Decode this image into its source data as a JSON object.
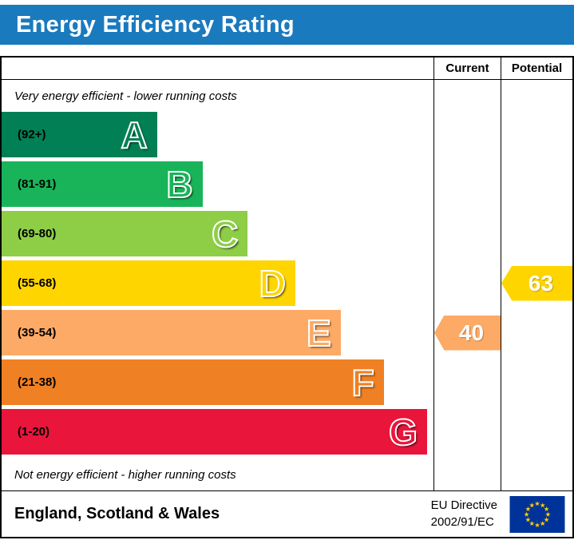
{
  "title": "Energy Efficiency Rating",
  "columns": {
    "current": "Current",
    "potential": "Potential"
  },
  "notes": {
    "top": "Very energy efficient - lower running costs",
    "bottom": "Not energy efficient - higher running costs"
  },
  "chart_data": {
    "type": "bar",
    "orientation": "horizontal",
    "title": "Energy Efficiency Rating",
    "bands": [
      {
        "letter": "A",
        "range": "(92+)",
        "color": "#008054",
        "width_pct": 36
      },
      {
        "letter": "B",
        "range": "(81-91)",
        "color": "#19b459",
        "width_pct": 46.5
      },
      {
        "letter": "C",
        "range": "(69-80)",
        "color": "#8dce46",
        "width_pct": 57
      },
      {
        "letter": "D",
        "range": "(55-68)",
        "color": "#ffd500",
        "width_pct": 68
      },
      {
        "letter": "E",
        "range": "(39-54)",
        "color": "#fcaa65",
        "width_pct": 78.5
      },
      {
        "letter": "F",
        "range": "(21-38)",
        "color": "#ef8023",
        "width_pct": 88.5
      },
      {
        "letter": "G",
        "range": "(1-20)",
        "color": "#e9153b",
        "width_pct": 98.5
      }
    ],
    "current": {
      "value": 40,
      "band": "E",
      "band_index": 4,
      "color": "#fcaa65"
    },
    "potential": {
      "value": 63,
      "band": "D",
      "band_index": 3,
      "color": "#ffd500"
    }
  },
  "footer": {
    "region": "England, Scotland & Wales",
    "directive_line1": "EU Directive",
    "directive_line2": "2002/91/EC"
  },
  "colors": {
    "banner_bg": "#1a7abe",
    "banner_text": "#ffffff",
    "border": "#000000",
    "flag_bg": "#003399",
    "flag_stars": "#ffcc00"
  }
}
